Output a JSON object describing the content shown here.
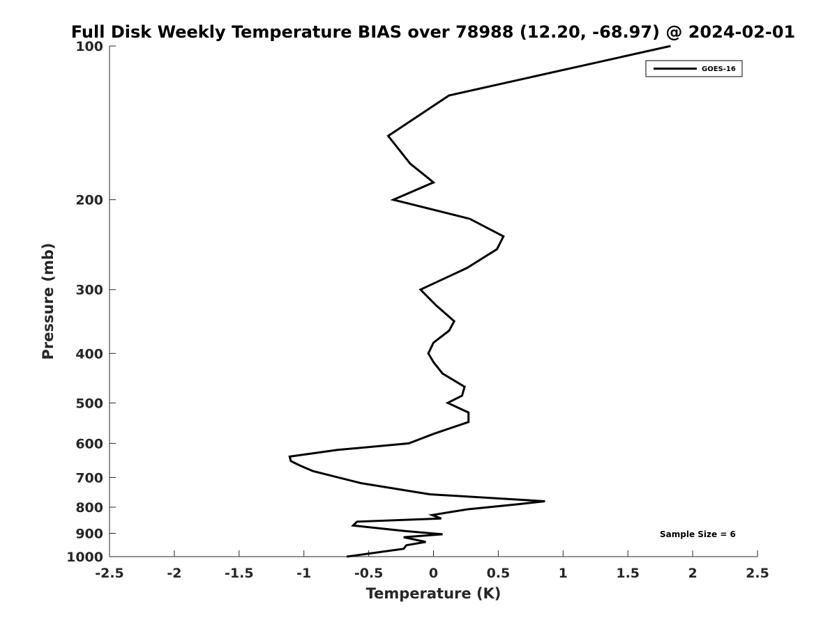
{
  "chart_data": {
    "type": "line",
    "title": "Full Disk Weekly Temperature BIAS over 78988 (12.20, -68.97) @ 2024-02-01",
    "xlabel": "Temperature (K)",
    "ylabel": "Pressure (mb)",
    "xlim": [
      -2.5,
      2.5
    ],
    "ylim": [
      1000,
      100
    ],
    "y_scale": "log",
    "y_reversed": true,
    "grid": false,
    "legend_position": "top-right",
    "x_ticks": [
      "-2.5",
      "-2",
      "-1.5",
      "-1",
      "-0.5",
      "0",
      "0.5",
      "1",
      "1.5",
      "2",
      "2.5"
    ],
    "x_tick_values": [
      -2.5,
      -2,
      -1.5,
      -1,
      -0.5,
      0,
      0.5,
      1,
      1.5,
      2,
      2.5
    ],
    "y_ticks": [
      "100",
      "200",
      "300",
      "400",
      "500",
      "600",
      "700",
      "800",
      "900",
      "1000"
    ],
    "y_tick_values": [
      100,
      200,
      300,
      400,
      500,
      600,
      700,
      800,
      900,
      1000
    ],
    "annotation": "Sample Size = 6",
    "series": [
      {
        "name": "GOES-16",
        "color": "#000000",
        "points": [
          [
            1.83,
            100
          ],
          [
            0.12,
            125
          ],
          [
            -0.35,
            150
          ],
          [
            -0.18,
            170
          ],
          [
            0.0,
            185
          ],
          [
            -0.31,
            200
          ],
          [
            0.28,
            218
          ],
          [
            0.54,
            236
          ],
          [
            0.49,
            250
          ],
          [
            0.26,
            272
          ],
          [
            -0.1,
            300
          ],
          [
            0.02,
            322
          ],
          [
            0.16,
            346
          ],
          [
            0.12,
            361
          ],
          [
            0.0,
            381
          ],
          [
            -0.04,
            400
          ],
          [
            0.0,
            416
          ],
          [
            0.07,
            438
          ],
          [
            0.24,
            465
          ],
          [
            0.22,
            484
          ],
          [
            0.11,
            500
          ],
          [
            0.27,
            522
          ],
          [
            0.27,
            545
          ],
          [
            0.0,
            575
          ],
          [
            -0.19,
            600
          ],
          [
            -0.74,
            618
          ],
          [
            -1.11,
            637
          ],
          [
            -1.1,
            650
          ],
          [
            -1.03,
            663
          ],
          [
            -0.93,
            680
          ],
          [
            -0.56,
            718
          ],
          [
            -0.03,
            755
          ],
          [
            0.86,
            779
          ],
          [
            0.66,
            789
          ],
          [
            0.26,
            808
          ],
          [
            -0.01,
            829
          ],
          [
            0.06,
            842
          ],
          [
            -0.59,
            854
          ],
          [
            -0.62,
            869
          ],
          [
            -0.22,
            891
          ],
          [
            0.07,
            904
          ],
          [
            -0.23,
            916
          ],
          [
            -0.06,
            936
          ],
          [
            -0.21,
            950
          ],
          [
            -0.23,
            965
          ],
          [
            -0.67,
            1000
          ]
        ]
      }
    ]
  }
}
